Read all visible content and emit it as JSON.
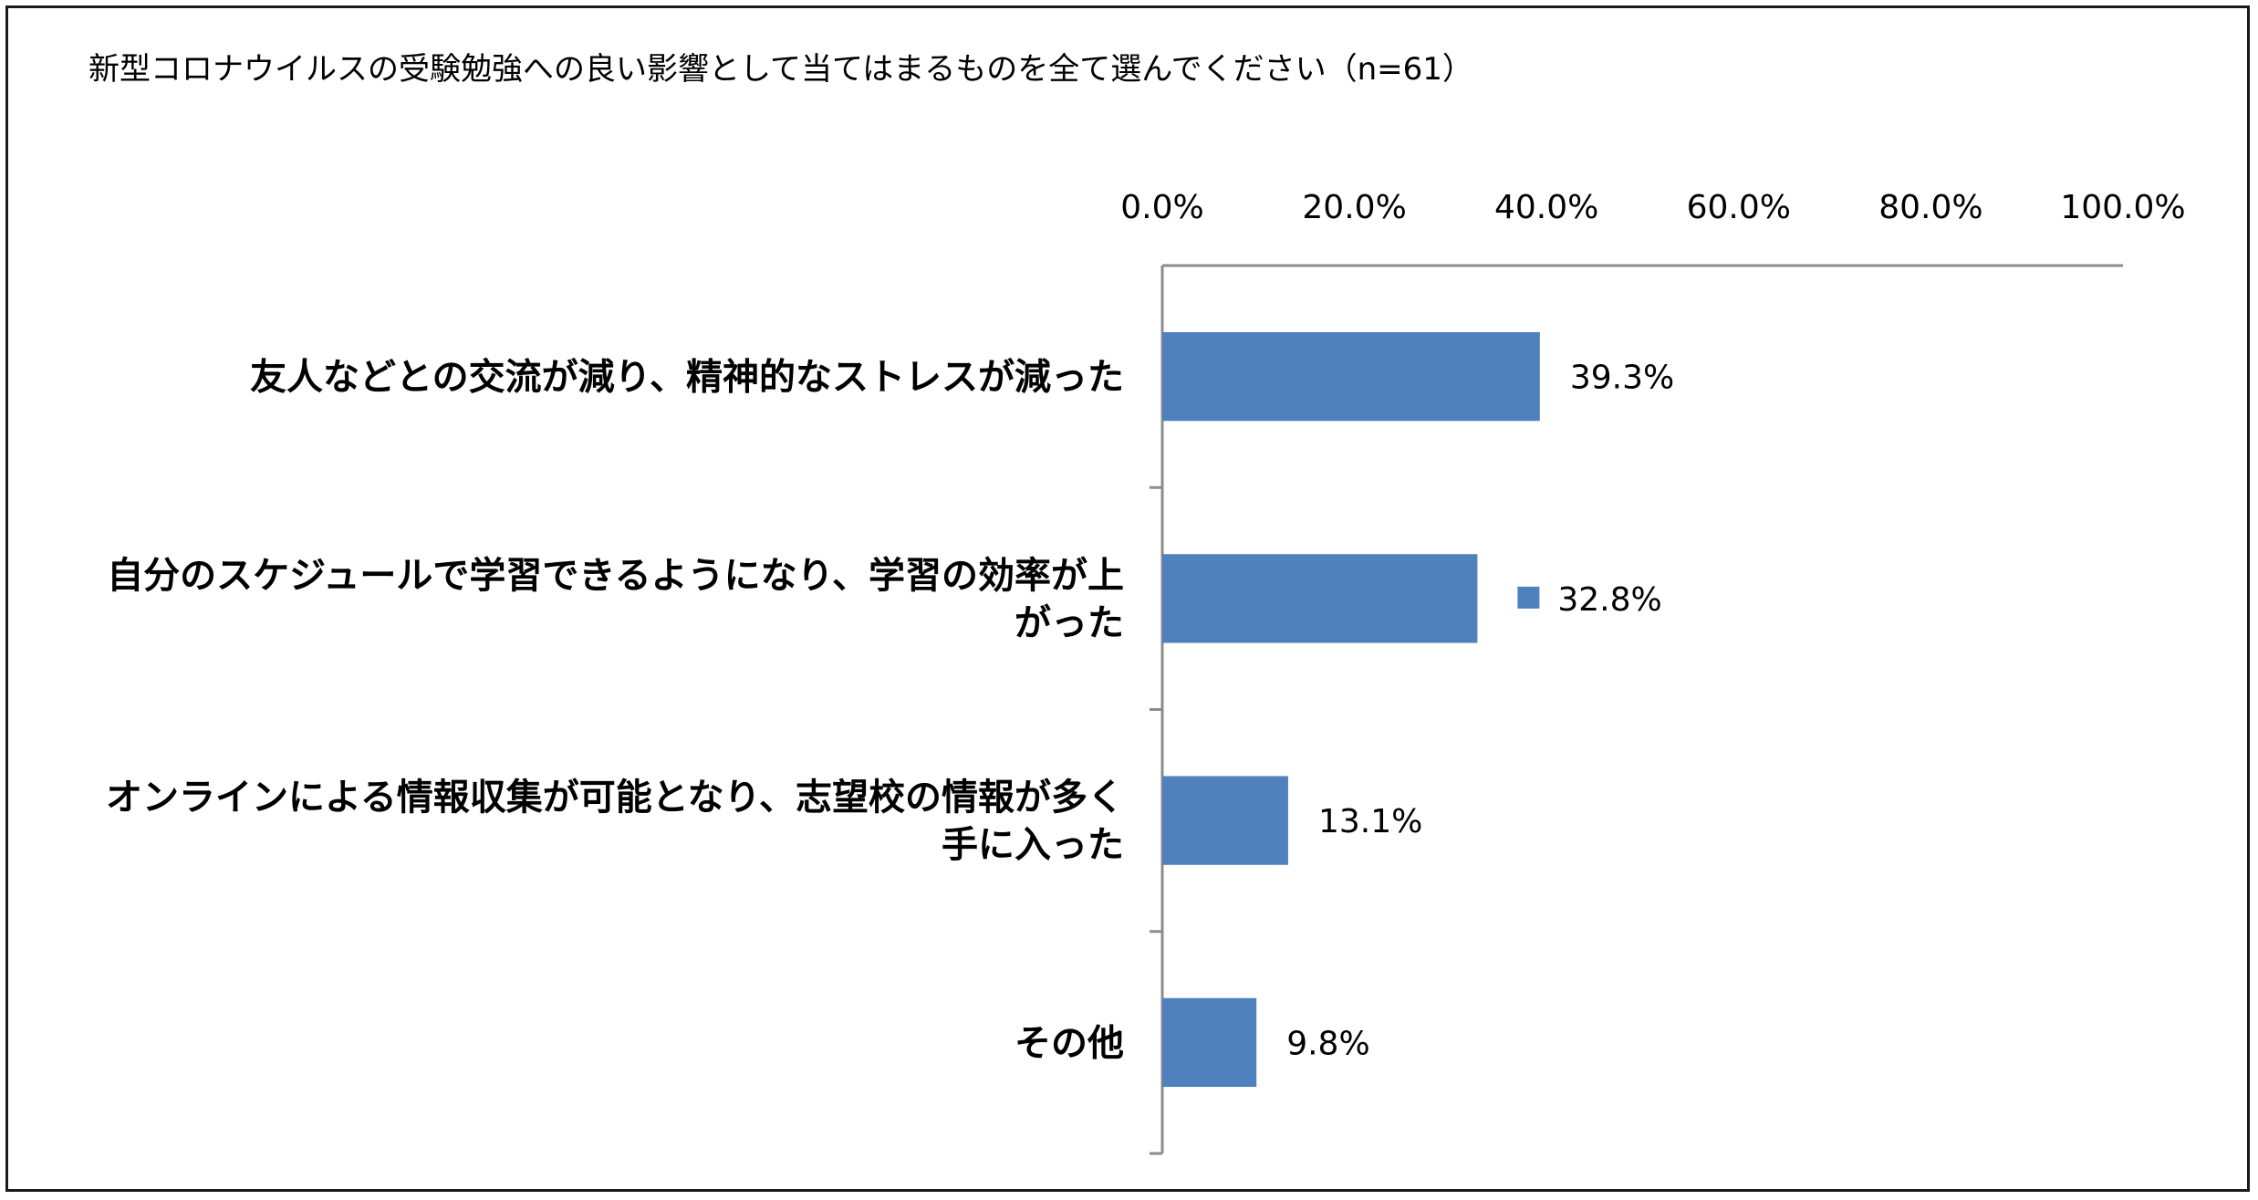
{
  "chart_data": {
    "type": "bar",
    "orientation": "horizontal",
    "title": "新型コロナウイルスの受験勉強への良い影響として当てはまるものを全て選んでください（n=61）",
    "categories": [
      [
        "友人などとの交流が減り、精神的なストレスが減った"
      ],
      [
        "自分のスケジュールで学習できるようになり、学習の効率が上",
        "がった"
      ],
      [
        "オンラインによる情報収集が可能となり、志望校の情報が多く",
        "手に入った"
      ],
      [
        "その他"
      ]
    ],
    "values": [
      39.3,
      32.8,
      13.1,
      9.8
    ],
    "data_labels": [
      "39.3%",
      "32.8%",
      "13.1%",
      "9.8%"
    ],
    "x_ticks": [
      "0.0%",
      "20.0%",
      "40.0%",
      "60.0%",
      "80.0%",
      "100.0%"
    ],
    "xlim": [
      0,
      100
    ],
    "x_axis_position": "top",
    "grid": false,
    "bar_color": "#4f81bd",
    "legend_marker_on": "32.8%"
  }
}
